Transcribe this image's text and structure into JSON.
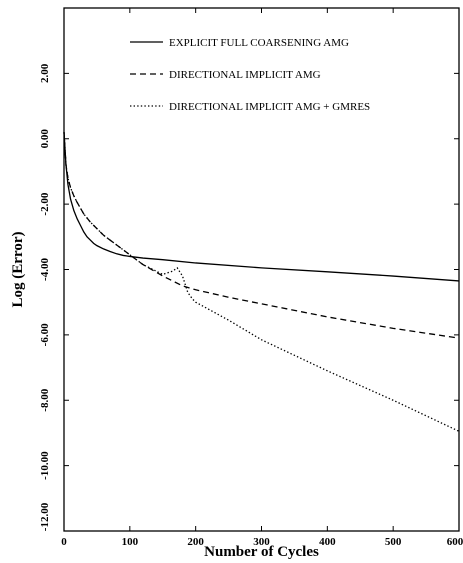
{
  "chart_data": {
    "type": "line",
    "title": "",
    "xlabel": "Number of Cycles",
    "ylabel": "Log (Error)",
    "xlim": [
      0,
      600
    ],
    "ylim": [
      -12,
      4
    ],
    "x_ticks": [
      0,
      100,
      200,
      300,
      400,
      500,
      600
    ],
    "x_tick_labels": [
      "0",
      "100",
      "200",
      "300",
      "400",
      "500",
      "600"
    ],
    "y_ticks": [
      2,
      0,
      -2,
      -4,
      -6,
      -8,
      -10,
      -12
    ],
    "y_tick_labels": [
      "2.00",
      "0.00",
      "-2.00",
      "-4.00",
      "-6.00",
      "-8.00",
      "-10.00",
      "-12.00"
    ],
    "grid": false,
    "legend_position": "top-right",
    "series": [
      {
        "name": "EXPLICIT FULL COARSENING AMG",
        "style": "solid",
        "x": [
          0,
          3,
          6,
          10,
          15,
          20,
          25,
          30,
          35,
          40,
          45,
          50,
          60,
          70,
          80,
          90,
          100,
          120,
          150,
          200,
          300,
          400,
          500,
          600
        ],
        "y": [
          0.2,
          -0.8,
          -1.4,
          -1.85,
          -2.2,
          -2.45,
          -2.65,
          -2.85,
          -3.0,
          -3.1,
          -3.2,
          -3.27,
          -3.37,
          -3.45,
          -3.52,
          -3.57,
          -3.6,
          -3.65,
          -3.7,
          -3.8,
          -3.95,
          -4.07,
          -4.2,
          -4.35
        ]
      },
      {
        "name": "DIRECTIONAL IMPLICIT AMG",
        "style": "dashed",
        "x": [
          0,
          3,
          6,
          10,
          15,
          20,
          30,
          40,
          50,
          60,
          80,
          100,
          120,
          150,
          180,
          200,
          250,
          300,
          400,
          500,
          600
        ],
        "y": [
          0.2,
          -0.8,
          -1.2,
          -1.5,
          -1.75,
          -1.95,
          -2.3,
          -2.55,
          -2.75,
          -2.95,
          -3.25,
          -3.55,
          -3.85,
          -4.2,
          -4.5,
          -4.62,
          -4.85,
          -5.05,
          -5.45,
          -5.8,
          -6.1
        ]
      },
      {
        "name": "DIRECTIONAL IMPLICIT AMG + GMRES",
        "style": "dotted",
        "x": [
          0,
          3,
          6,
          10,
          15,
          20,
          30,
          40,
          50,
          60,
          80,
          100,
          120,
          150,
          165,
          172,
          180,
          188,
          195,
          200,
          250,
          300,
          400,
          500,
          600
        ],
        "y": [
          0.2,
          -0.8,
          -1.2,
          -1.5,
          -1.75,
          -1.95,
          -2.3,
          -2.55,
          -2.75,
          -2.95,
          -3.25,
          -3.55,
          -3.85,
          -4.15,
          -4.05,
          -3.95,
          -4.2,
          -4.7,
          -4.9,
          -5.0,
          -5.55,
          -6.15,
          -7.1,
          -8.0,
          -8.95
        ]
      }
    ]
  }
}
